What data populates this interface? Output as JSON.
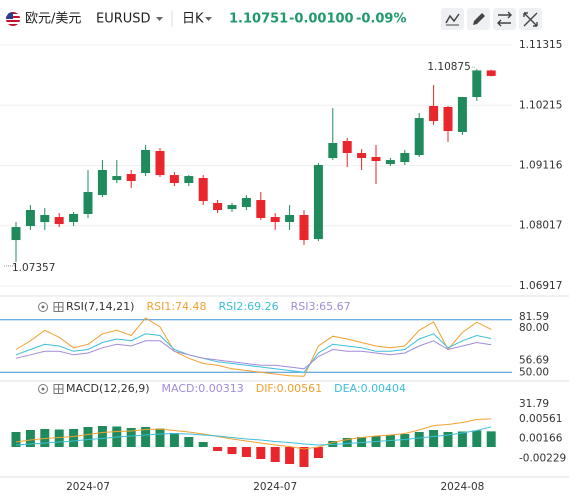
{
  "header": {
    "name": "欧元/美元",
    "symbol": "EURUSD",
    "period": "日K",
    "price": "1.10751",
    "change": "-0.00100",
    "change_pct": "-0.09%"
  },
  "chart_data": [
    {
      "type": "candlestick",
      "up_color": "#1f8b5c",
      "down_color": "#e8262b",
      "open": [
        1.07756,
        1.08011,
        1.08085,
        1.08176,
        1.08085,
        1.08231,
        1.08578,
        1.08851,
        1.08961,
        1.08979,
        1.09381,
        1.08942,
        1.08797,
        1.08888,
        1.08432,
        1.08322,
        1.08358,
        1.08486,
        1.08176,
        1.08085,
        1.08213,
        1.07774,
        1.09253,
        1.09563,
        1.09344,
        1.09271,
        1.09143,
        1.0918,
        1.09307,
        1.10202,
        1.10184,
        1.09727,
        1.10366,
        1.10851
      ],
      "high": [
        1.08085,
        1.08395,
        1.0834,
        1.08249,
        1.08267,
        1.09034,
        1.09216,
        1.09216,
        1.09034,
        1.0949,
        1.09435,
        1.08997,
        1.08942,
        1.08942,
        1.08486,
        1.08432,
        1.08578,
        1.08632,
        1.08249,
        1.08395,
        1.08304,
        1.09162,
        1.10165,
        1.09618,
        1.09417,
        1.0949,
        1.09253,
        1.09399,
        1.10074,
        1.10585,
        1.10202,
        1.10366,
        1.10875,
        1.10862
      ],
      "low": [
        1.07357,
        1.07939,
        1.07939,
        1.07993,
        1.08011,
        1.08158,
        1.08541,
        1.08797,
        1.08705,
        1.08924,
        1.08906,
        1.08742,
        1.08742,
        1.08395,
        1.08249,
        1.08267,
        1.08304,
        1.08121,
        1.07939,
        1.07939,
        1.07665,
        1.07738,
        1.09216,
        1.09089,
        1.09034,
        1.08778,
        1.09107,
        1.09125,
        1.09271,
        1.09855,
        1.09545,
        1.09672,
        1.10293,
        1.1074
      ],
      "close": [
        1.07993,
        1.08304,
        1.08213,
        1.08048,
        1.08231,
        1.08632,
        1.09034,
        1.08924,
        1.08833,
        1.09399,
        1.08942,
        1.08797,
        1.08924,
        1.08468,
        1.08304,
        1.08395,
        1.08523,
        1.08158,
        1.08085,
        1.08213,
        1.07756,
        1.09125,
        1.09527,
        1.09344,
        1.09253,
        1.09198,
        1.09216,
        1.09344,
        1.09983,
        1.09928,
        1.09746,
        1.10366,
        1.10851,
        1.10751
      ],
      "ylim": [
        1.06753,
        1.11443
      ],
      "yticks": [
        1.11315,
        1.10215,
        1.09116,
        1.08017,
        1.06917
      ],
      "grid": true
    },
    {
      "type": "line",
      "title": "RSI(7,14,21)",
      "ylim": [
        45,
        85
      ],
      "yticks": [
        81.59,
        56.69,
        31.79
      ],
      "hlines": [
        {
          "value": 80,
          "label": "80.00"
        },
        {
          "value": 50,
          "label": "50.00"
        }
      ],
      "hline_color": "#3a8fd6",
      "series": [
        {
          "name": "RSI1:74.48",
          "color": "#f0a030",
          "values": [
            63,
            68,
            74,
            70,
            64,
            66,
            72,
            74,
            71,
            81,
            76,
            62,
            58,
            55,
            54,
            52,
            51,
            50,
            49,
            48,
            47.7,
            65,
            70.6,
            69,
            67,
            65,
            64,
            65,
            74,
            78.7,
            63,
            72.7,
            78.6,
            74.48
          ]
        },
        {
          "name": "RSI2:69.26",
          "color": "#3cbfd9",
          "values": [
            60,
            63,
            66,
            65,
            62,
            63,
            67,
            69,
            68,
            72,
            71,
            63,
            60,
            58,
            56,
            55,
            54,
            53,
            52,
            51,
            50,
            61,
            66,
            65,
            64,
            62,
            62,
            63,
            69,
            72,
            64,
            68,
            71,
            69.26
          ]
        },
        {
          "name": "RSI3:65.67",
          "color": "#a38bd8",
          "values": [
            58,
            60,
            62,
            62,
            60,
            61,
            64,
            66,
            65,
            68,
            68,
            62,
            60,
            58,
            57,
            56,
            55,
            54,
            54,
            53,
            52,
            59,
            63,
            62,
            62,
            61,
            60,
            61,
            65,
            68,
            63,
            65,
            67,
            65.67
          ]
        }
      ]
    },
    {
      "type": "combo",
      "title": "MACD(12,26,9)",
      "ylim": [
        -0.006,
        0.0098
      ],
      "yticks": [
        0.00561,
        0.00166,
        -0.00229
      ],
      "bar_up_color": "#1f8b5c",
      "bar_down_color": "#e8262b",
      "categories": [
        null,
        null,
        null,
        null,
        null,
        "2024-07",
        null,
        null,
        null,
        null,
        null,
        null,
        null,
        null,
        null,
        null,
        null,
        null,
        "2024-07",
        null,
        null,
        null,
        null,
        null,
        null,
        null,
        null,
        null,
        null,
        null,
        null,
        "2024-08",
        null,
        null
      ],
      "series": [
        {
          "name": "MACD:0.00313",
          "type": "bar",
          "color": "#a38bd8",
          "values": [
            0.003,
            0.0034,
            0.0036,
            0.0035,
            0.0036,
            0.004,
            0.0042,
            0.0041,
            0.0038,
            0.004,
            0.0037,
            0.0028,
            0.002,
            0.001,
            -0.0008,
            -0.0014,
            -0.002,
            -0.0024,
            -0.003,
            -0.0034,
            -0.004,
            -0.0022,
            0.0012,
            0.0018,
            0.002,
            0.0022,
            0.0024,
            0.0026,
            0.003,
            0.0034,
            0.003,
            0.0031,
            0.0033,
            0.00313
          ]
        },
        {
          "name": "DIF:0.00561",
          "type": "line",
          "color": "#f0a030",
          "values": [
            0.001,
            0.0014,
            0.0017,
            0.0019,
            0.0021,
            0.0025,
            0.0029,
            0.0031,
            0.0032,
            0.0035,
            0.0036,
            0.0033,
            0.003,
            0.0026,
            0.0021,
            0.0016,
            0.0012,
            0.0008,
            0.0004,
            0.0001,
            -0.0004,
            0,
            0.0009,
            0.0015,
            0.0019,
            0.0022,
            0.0024,
            0.0027,
            0.0034,
            0.0043,
            0.0045,
            0.0049,
            0.0055,
            0.00561
          ]
        },
        {
          "name": "DEA:0.00404",
          "type": "line",
          "color": "#3cbfd9",
          "values": [
            0.0004,
            0.0006,
            0.0008,
            0.001,
            0.0012,
            0.0015,
            0.0017,
            0.002,
            0.0022,
            0.0024,
            0.0026,
            0.0027,
            0.0026,
            0.0024,
            0.0022,
            0.0019,
            0.0016,
            0.0014,
            0.0011,
            0.0009,
            0.0006,
            0.0004,
            0.0005,
            0.0007,
            0.0009,
            0.0011,
            0.0013,
            0.0015,
            0.0018,
            0.0021,
            0.0024,
            0.0028,
            0.0033,
            0.00404
          ]
        }
      ]
    }
  ]
}
